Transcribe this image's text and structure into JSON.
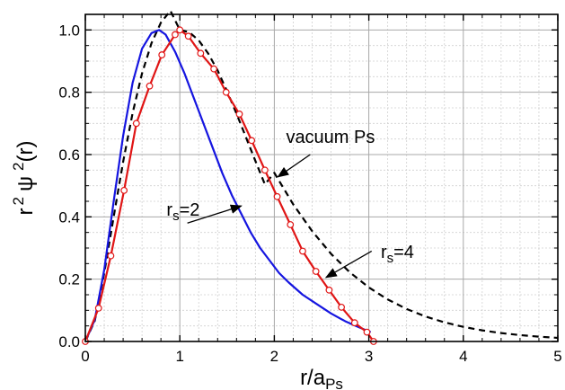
{
  "chart_data": {
    "type": "line",
    "xlabel": {
      "main": "r/a",
      "sub": "Ps"
    },
    "ylabel": {
      "r": "r",
      "sup1": "2",
      "psi": "ψ",
      "sup2": "2",
      "tail": "(r)"
    },
    "xlim": [
      0,
      5
    ],
    "ylim": [
      0,
      1.05
    ],
    "xticks": [
      "0",
      "1",
      "2",
      "3",
      "4",
      "5"
    ],
    "xtick_values": [
      0,
      1,
      2,
      3,
      4,
      5
    ],
    "yticks": [
      "0.0",
      "0.2",
      "0.4",
      "0.6",
      "0.8",
      "1.0"
    ],
    "ytick_values": [
      0,
      0.2,
      0.4,
      0.6,
      0.8,
      1.0
    ],
    "grid": {
      "major": true,
      "minor": true
    },
    "annotations": {
      "vacuum": {
        "text": "vacuum Ps",
        "xy": [
          2.0,
          0.54
        ],
        "text_xy": [
          2.2,
          0.66
        ]
      },
      "rs2": {
        "text": "r",
        "sub": "s",
        "tail": "=2",
        "xy": [
          1.65,
          0.435
        ],
        "text_xy": [
          0.85,
          0.41
        ]
      },
      "rs4": {
        "text": "r",
        "sub": "s",
        "tail": "=4",
        "xy": [
          2.5,
          0.2
        ],
        "text_xy": [
          3.07,
          0.26
        ]
      }
    },
    "series": [
      {
        "color": "#000000",
        "style": "dashed",
        "x": [
          0,
          0.1,
          0.2,
          0.3,
          0.4,
          0.5,
          0.6,
          0.7,
          0.8,
          0.9,
          1.0,
          1.1,
          1.2,
          1.3,
          1.4,
          1.5,
          1.6,
          1.7,
          1.8,
          1.9,
          2.0,
          2.2,
          2.4,
          2.6,
          2.8,
          3.0,
          3.2,
          3.4,
          3.6,
          3.8,
          4.0,
          4.2,
          4.4,
          4.6,
          4.8,
          5.0
        ],
        "y": [
          0,
          0.0665,
          0.2195,
          0.4003,
          0.5768,
          0.7326,
          0.8604,
          0.9574,
          1.0239,
          1.0618,
          1.0,
          0.9926,
          0.9665,
          0.9246,
          0.8698,
          0.803,
          0.7313,
          0.6553,
          0.5793,
          0.5044,
          0.5413,
          0.4401,
          0.3543,
          0.2814,
          0.2217,
          0.1735,
          0.1349,
          0.1043,
          0.0802,
          0.0614,
          0.0469,
          0.0357,
          0.027,
          0.0204,
          0.0154,
          0.0116
        ]
      },
      {
        "color": "#1515e0",
        "style": "solid",
        "x": [
          0,
          0.1,
          0.2,
          0.3,
          0.4,
          0.5,
          0.6,
          0.7,
          0.78,
          0.85,
          0.95,
          1.05,
          1.15,
          1.25,
          1.35,
          1.45,
          1.55,
          1.65,
          1.75,
          1.85,
          1.95,
          2.05,
          2.15,
          2.3,
          2.45,
          2.6,
          2.75,
          2.9,
          3.02
        ],
        "y": [
          0,
          0.07,
          0.23,
          0.45,
          0.66,
          0.83,
          0.94,
          0.99,
          1.0,
          0.985,
          0.93,
          0.86,
          0.78,
          0.7,
          0.62,
          0.54,
          0.47,
          0.41,
          0.35,
          0.3,
          0.26,
          0.22,
          0.19,
          0.15,
          0.12,
          0.09,
          0.065,
          0.045,
          0.03
        ]
      },
      {
        "color": "#e01515",
        "style": "solid-markers",
        "x": [
          0,
          0.14,
          0.27,
          0.41,
          0.54,
          0.68,
          0.81,
          0.95,
          1.0,
          1.09,
          1.22,
          1.36,
          1.49,
          1.63,
          1.76,
          1.9,
          2.03,
          2.17,
          2.3,
          2.44,
          2.58,
          2.71,
          2.85,
          2.98,
          3.05
        ],
        "y": [
          0,
          0.107,
          0.275,
          0.485,
          0.7,
          0.82,
          0.92,
          0.985,
          1.0,
          0.98,
          0.925,
          0.875,
          0.8,
          0.73,
          0.645,
          0.55,
          0.465,
          0.375,
          0.29,
          0.225,
          0.165,
          0.11,
          0.06,
          0.03,
          0.0
        ]
      }
    ]
  }
}
